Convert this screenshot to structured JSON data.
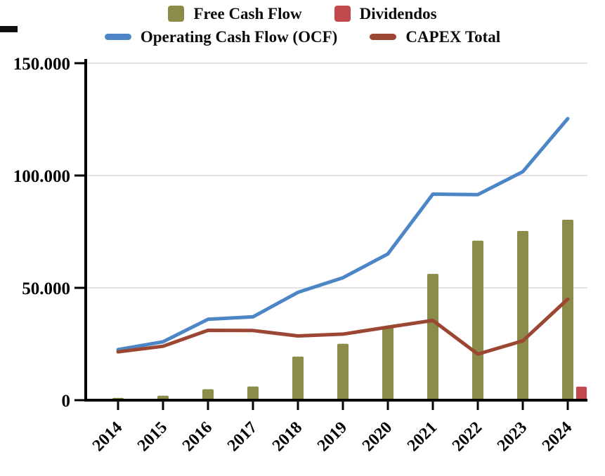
{
  "chart_data": {
    "type": "combo-bar-line",
    "title": "",
    "xlabel": "",
    "ylabel": "",
    "categories": [
      "2014",
      "2015",
      "2016",
      "2017",
      "2018",
      "2019",
      "2020",
      "2021",
      "2022",
      "2023",
      "2024"
    ],
    "series": [
      {
        "name": "Free Cash Flow",
        "kind": "bar",
        "color": "#8b8c4a",
        "values": [
          1000,
          2000,
          4900,
          6100,
          19400,
          25100,
          32600,
          56200,
          71000,
          75300,
          80300
        ]
      },
      {
        "name": "Dividendos",
        "kind": "bar",
        "color": "#c2494b",
        "values": [
          null,
          null,
          null,
          null,
          null,
          null,
          null,
          null,
          null,
          null,
          6000
        ]
      },
      {
        "name": "Operating Cash Flow (OCF)",
        "kind": "line",
        "color": "#4d86c6",
        "values": [
          22500,
          26000,
          36000,
          37100,
          48000,
          54500,
          65100,
          91700,
          91500,
          101700,
          125300
        ]
      },
      {
        "name": "CAPEX Total",
        "kind": "line",
        "color": "#9c4733",
        "values": [
          21500,
          24000,
          31100,
          31000,
          28600,
          29400,
          32500,
          35500,
          20500,
          26400,
          45000
        ]
      }
    ],
    "yticks": [
      {
        "value": 0,
        "label": "0"
      },
      {
        "value": 50000,
        "label": "50.000"
      },
      {
        "value": 100000,
        "label": "100.000"
      },
      {
        "value": 150000,
        "label": "150.000"
      }
    ],
    "ylim": [
      0,
      150000
    ],
    "grid": true,
    "legend_position": "top",
    "number_format": "thousands-dot"
  }
}
